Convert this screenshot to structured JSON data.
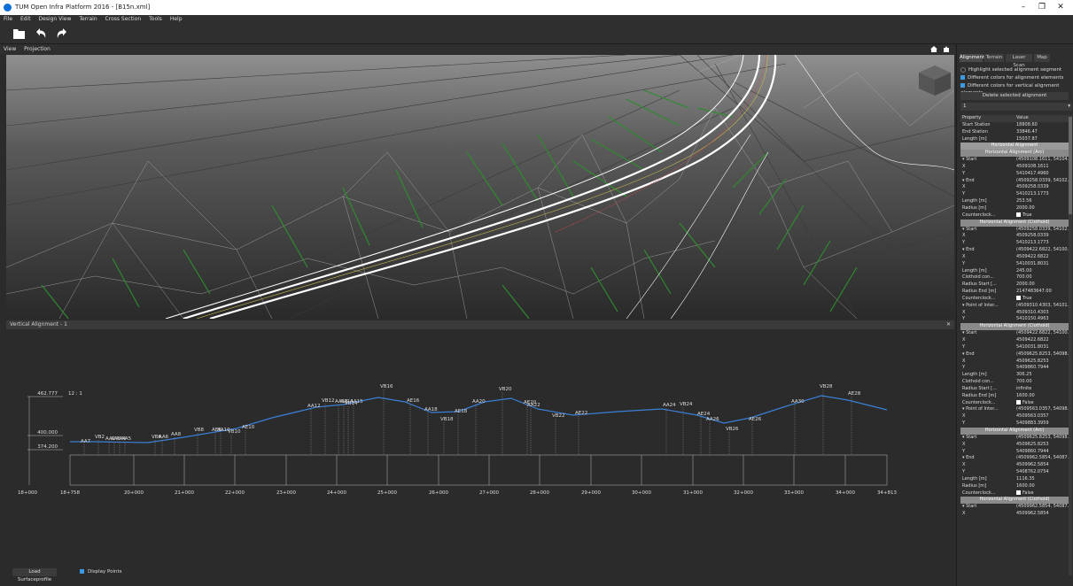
{
  "window": {
    "title": "TUM Open Infra Platform 2016 - [B15n.xml]"
  },
  "menu": [
    "File",
    "Edit",
    "Design View",
    "Terrain",
    "Cross Section",
    "Tools",
    "Help"
  ],
  "toolbar": {
    "open_icon": "folder-open-icon",
    "undo_icon": "undo-icon",
    "redo_icon": "redo-icon"
  },
  "viewbar": {
    "view": "View",
    "projection": "Projection"
  },
  "vertical_panel": {
    "title": "Vertical Alignment - 1"
  },
  "bottom": {
    "load_surface": "Load Surfaceprofile",
    "display_points": "Display Points"
  },
  "tabs": [
    "Alignment",
    "Terrain",
    "Laser Scan",
    "Map"
  ],
  "options": {
    "highlight": "Highlight selected alignment segment",
    "diff_colors": "Different colors for alignment elements",
    "diff_vertical": "Different colors for vertical alignment elements"
  },
  "delete_button": "Delete selected alignment",
  "combo_value": "1",
  "table": {
    "header": [
      "Property",
      "Value"
    ],
    "rows": [
      {
        "t": "kv",
        "k": "Start Station",
        "v": "18808.60"
      },
      {
        "t": "kv",
        "k": "End Station",
        "v": "33846.47"
      },
      {
        "t": "kv",
        "k": "Length [m]",
        "v": "15037.87"
      },
      {
        "t": "g",
        "k": "Horizontal Alignment"
      },
      {
        "t": "s",
        "k": "Horizontal Alignment (Arc)"
      },
      {
        "t": "kv",
        "k": "▾ Start",
        "v": "(4509108.1611, 54104..."
      },
      {
        "t": "kv",
        "k": "        X",
        "v": "4509108.1611"
      },
      {
        "t": "kv",
        "k": "        Y",
        "v": "5410417.4960"
      },
      {
        "t": "kv",
        "k": "▾ End",
        "v": "(4509258.0339, 54102..."
      },
      {
        "t": "kv",
        "k": "        X",
        "v": "4509258.0339"
      },
      {
        "t": "kv",
        "k": "        Y",
        "v": "5410213.1773"
      },
      {
        "t": "kv",
        "k": "   Length [m]",
        "v": "253.56"
      },
      {
        "t": "kv",
        "k": "   Radius [m]",
        "v": "2000.00"
      },
      {
        "t": "kv",
        "k": "   Counterclock...",
        "v": "True",
        "c": true
      },
      {
        "t": "s",
        "k": "Horizontal Alignment (Clothoid)"
      },
      {
        "t": "kv",
        "k": "▾ Start",
        "v": "(4509258.0339, 54102..."
      },
      {
        "t": "kv",
        "k": "        X",
        "v": "4509258.0339"
      },
      {
        "t": "kv",
        "k": "        Y",
        "v": "5410213.1773"
      },
      {
        "t": "kv",
        "k": "▾ End",
        "v": "(4509422.6822, 54100..."
      },
      {
        "t": "kv",
        "k": "        X",
        "v": "4509422.6822"
      },
      {
        "t": "kv",
        "k": "        Y",
        "v": "5410031.8031"
      },
      {
        "t": "kv",
        "k": "   Length [m]",
        "v": "245.00"
      },
      {
        "t": "kv",
        "k": "   Clothoid con...",
        "v": "700.00"
      },
      {
        "t": "kv",
        "k": "   Radius Start [...",
        "v": "2000.00"
      },
      {
        "t": "kv",
        "k": "   Radius End [m]",
        "v": "2147483647.00"
      },
      {
        "t": "kv",
        "k": "   Counterclock...",
        "v": "True",
        "c": true
      },
      {
        "t": "kv",
        "k": "▾ Point of Inter...",
        "v": "(4509310.4303, 54101..."
      },
      {
        "t": "kv",
        "k": "        X",
        "v": "4509310.4303"
      },
      {
        "t": "kv",
        "k": "        Y",
        "v": "5410150.4963"
      },
      {
        "t": "s",
        "k": "Horizontal Alignment (Clothoid)"
      },
      {
        "t": "kv",
        "k": "▾ Start",
        "v": "(4509422.6822, 54100..."
      },
      {
        "t": "kv",
        "k": "        X",
        "v": "4509422.6822"
      },
      {
        "t": "kv",
        "k": "        Y",
        "v": "5410031.8031"
      },
      {
        "t": "kv",
        "k": "▾ End",
        "v": "(4509625.8253, 54098..."
      },
      {
        "t": "kv",
        "k": "        X",
        "v": "4509625.8253"
      },
      {
        "t": "kv",
        "k": "        Y",
        "v": "5409860.7944"
      },
      {
        "t": "kv",
        "k": "   Length [m]",
        "v": "306.25"
      },
      {
        "t": "kv",
        "k": "   Clothoid con...",
        "v": "700.00"
      },
      {
        "t": "kv",
        "k": "   Radius Start [...",
        "v": "infinite"
      },
      {
        "t": "kv",
        "k": "   Radius End [m]",
        "v": "1600.00"
      },
      {
        "t": "kv",
        "k": "   Counterclock...",
        "v": "False",
        "c": true
      },
      {
        "t": "kv",
        "k": "▾ Point of Inter...",
        "v": "(4509563.0357, 54098..."
      },
      {
        "t": "kv",
        "k": "        X",
        "v": "4509563.0357"
      },
      {
        "t": "kv",
        "k": "        Y",
        "v": "5409883.3959"
      },
      {
        "t": "s",
        "k": "Horizontal Alignment (Arc)"
      },
      {
        "t": "kv",
        "k": "▾ Start",
        "v": "(4509625.8253, 54098..."
      },
      {
        "t": "kv",
        "k": "        X",
        "v": "4509625.8253"
      },
      {
        "t": "kv",
        "k": "        Y",
        "v": "5409860.7944"
      },
      {
        "t": "kv",
        "k": "▾ End",
        "v": "(4509962.5854, 54087..."
      },
      {
        "t": "kv",
        "k": "        X",
        "v": "4509962.5854"
      },
      {
        "t": "kv",
        "k": "        Y",
        "v": "5408762.0754"
      },
      {
        "t": "kv",
        "k": "   Length [m]",
        "v": "1116.35"
      },
      {
        "t": "kv",
        "k": "   Radius [m]",
        "v": "1600.00"
      },
      {
        "t": "kv",
        "k": "   Counterclock...",
        "v": "False",
        "c": true
      },
      {
        "t": "s",
        "k": "Horizontal Alignment (Clothoid)"
      },
      {
        "t": "kv",
        "k": "▾ Start",
        "v": "(4509962.5854, 54087..."
      },
      {
        "t": "kv",
        "k": "        X",
        "v": "4509962.5854"
      }
    ]
  },
  "profile": {
    "scale": "12 : 1",
    "y_labels": [
      "462.777",
      "400.000",
      "374.200"
    ],
    "stations": [
      "18+000",
      "18+758",
      "20+000",
      "21+000",
      "22+000",
      "23+000",
      "24+000",
      "25+000",
      "26+000",
      "27+000",
      "28+000",
      "29+000",
      "30+000",
      "31+000",
      "32+000",
      "33+000",
      "34+000",
      "34+813"
    ],
    "point_labels": [
      "AA7",
      "VB2",
      "AA2",
      "AA3",
      "AA4",
      "AA5",
      "VB6",
      "AA6",
      "AA8",
      "VB8",
      "AE8",
      "AA10",
      "VB10",
      "AE10",
      "AA12",
      "VB12",
      "AA13",
      "AA14",
      "VB14",
      "AA15",
      "VB16",
      "AE16",
      "AA18",
      "VB18",
      "AE18",
      "AA20",
      "VB20",
      "AE20",
      "AA22",
      "VB22",
      "AE22",
      "AA24",
      "VB24",
      "AE24",
      "AA26",
      "VB26",
      "AE26",
      "AA30",
      "VB28",
      "AE28"
    ]
  }
}
